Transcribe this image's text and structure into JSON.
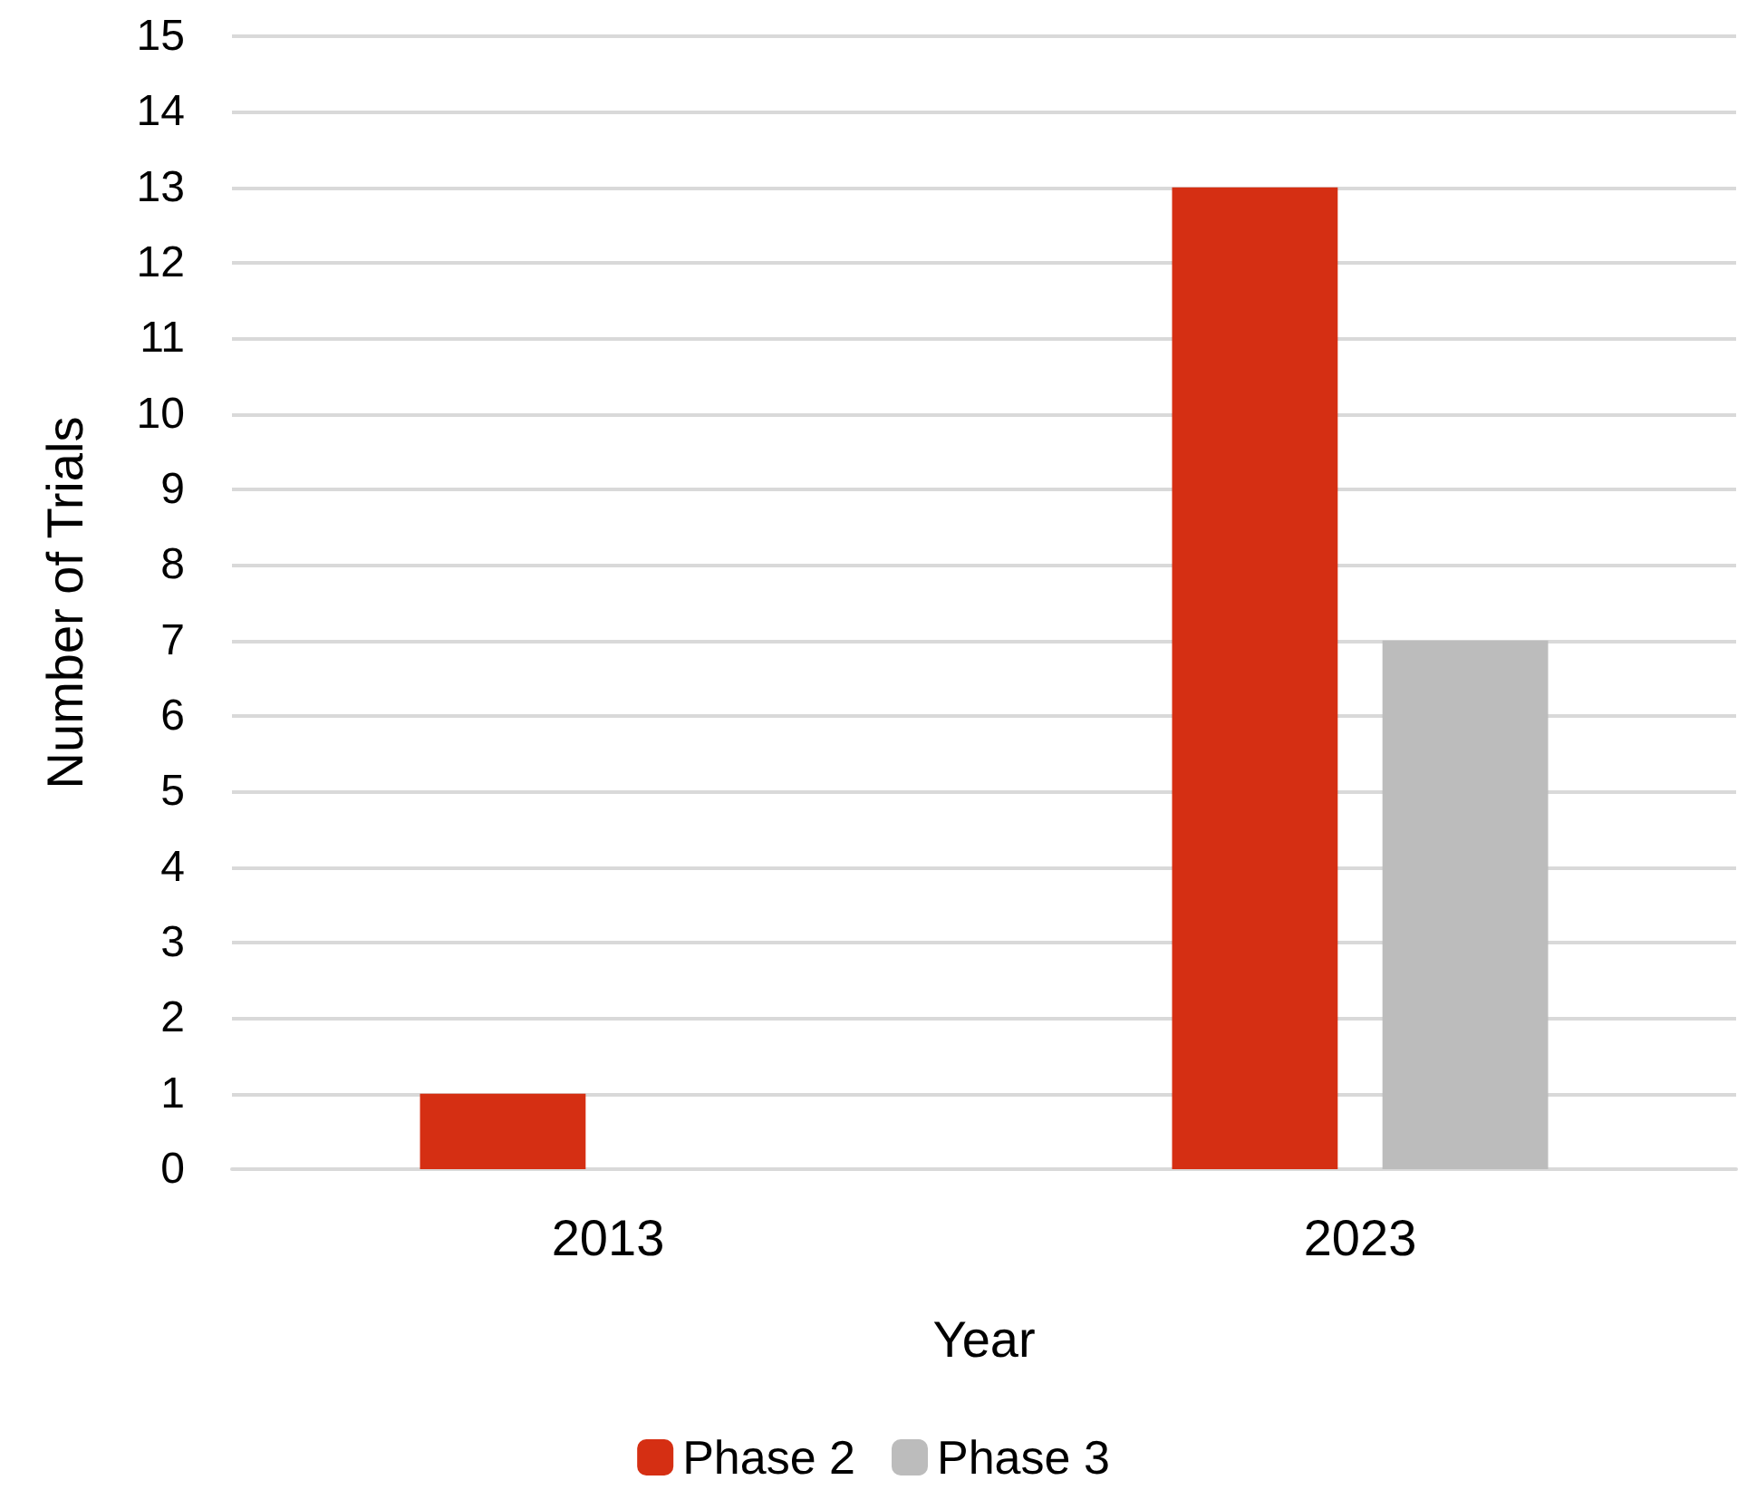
{
  "chart_data": {
    "type": "bar",
    "xlabel": "Year",
    "ylabel": "Number of Trials",
    "categories": [
      "2013",
      "2023"
    ],
    "series": [
      {
        "name": "Phase 2",
        "color": "#d52f13",
        "values": [
          1,
          13
        ]
      },
      {
        "name": "Phase 3",
        "color": "#bcbcbc",
        "values": [
          0,
          7
        ]
      }
    ],
    "ylim": [
      0,
      15
    ],
    "yticks": [
      0,
      1,
      2,
      3,
      4,
      5,
      6,
      7,
      8,
      9,
      10,
      11,
      12,
      13,
      14,
      15
    ],
    "grid": "y",
    "legend": "bottom"
  }
}
